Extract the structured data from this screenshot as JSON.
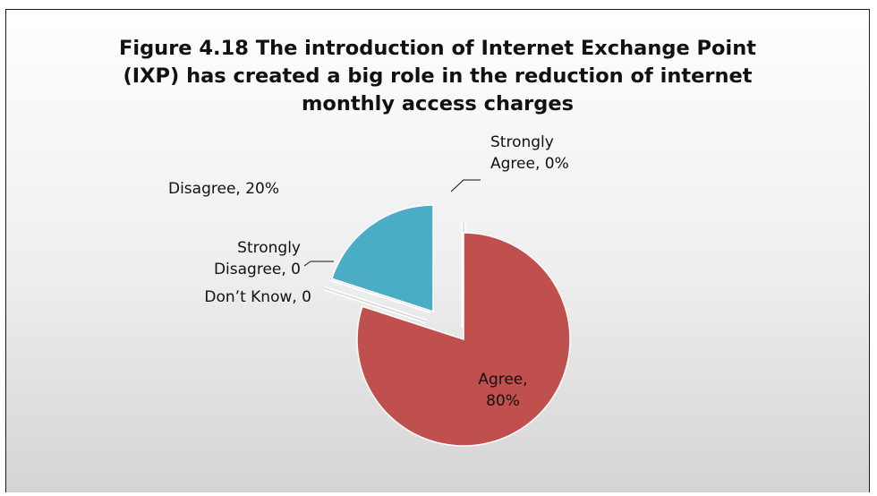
{
  "chart_data": {
    "type": "pie",
    "title_lines": [
      "Figure 4.18 The introduction of Internet Exchange Point",
      "(IXP) has created a big role in the reduction of internet",
      "monthly access charges"
    ],
    "slices": [
      {
        "category": "Strongly Agree",
        "value": 0,
        "label_lines": [
          "Strongly",
          "Agree, 0%"
        ],
        "color": "#dcdcdc"
      },
      {
        "category": "Agree",
        "value": 80,
        "label_lines": [
          "Agree,",
          "80%"
        ],
        "color": "#c0504d"
      },
      {
        "category": "Don’t Know",
        "value": 0,
        "label_lines": [
          "Don’t Know, 0"
        ],
        "color": "#dcdcdc"
      },
      {
        "category": "Strongly Disagree",
        "value": 0,
        "label_lines": [
          "Strongly",
          "Disagree, 0"
        ],
        "color": "#dcdcdc"
      },
      {
        "category": "Disagree",
        "value": 20,
        "label_lines": [
          "Disagree, 20%"
        ],
        "color": "#4bacc6"
      }
    ],
    "legend": "none",
    "data_labels": "category, value"
  }
}
